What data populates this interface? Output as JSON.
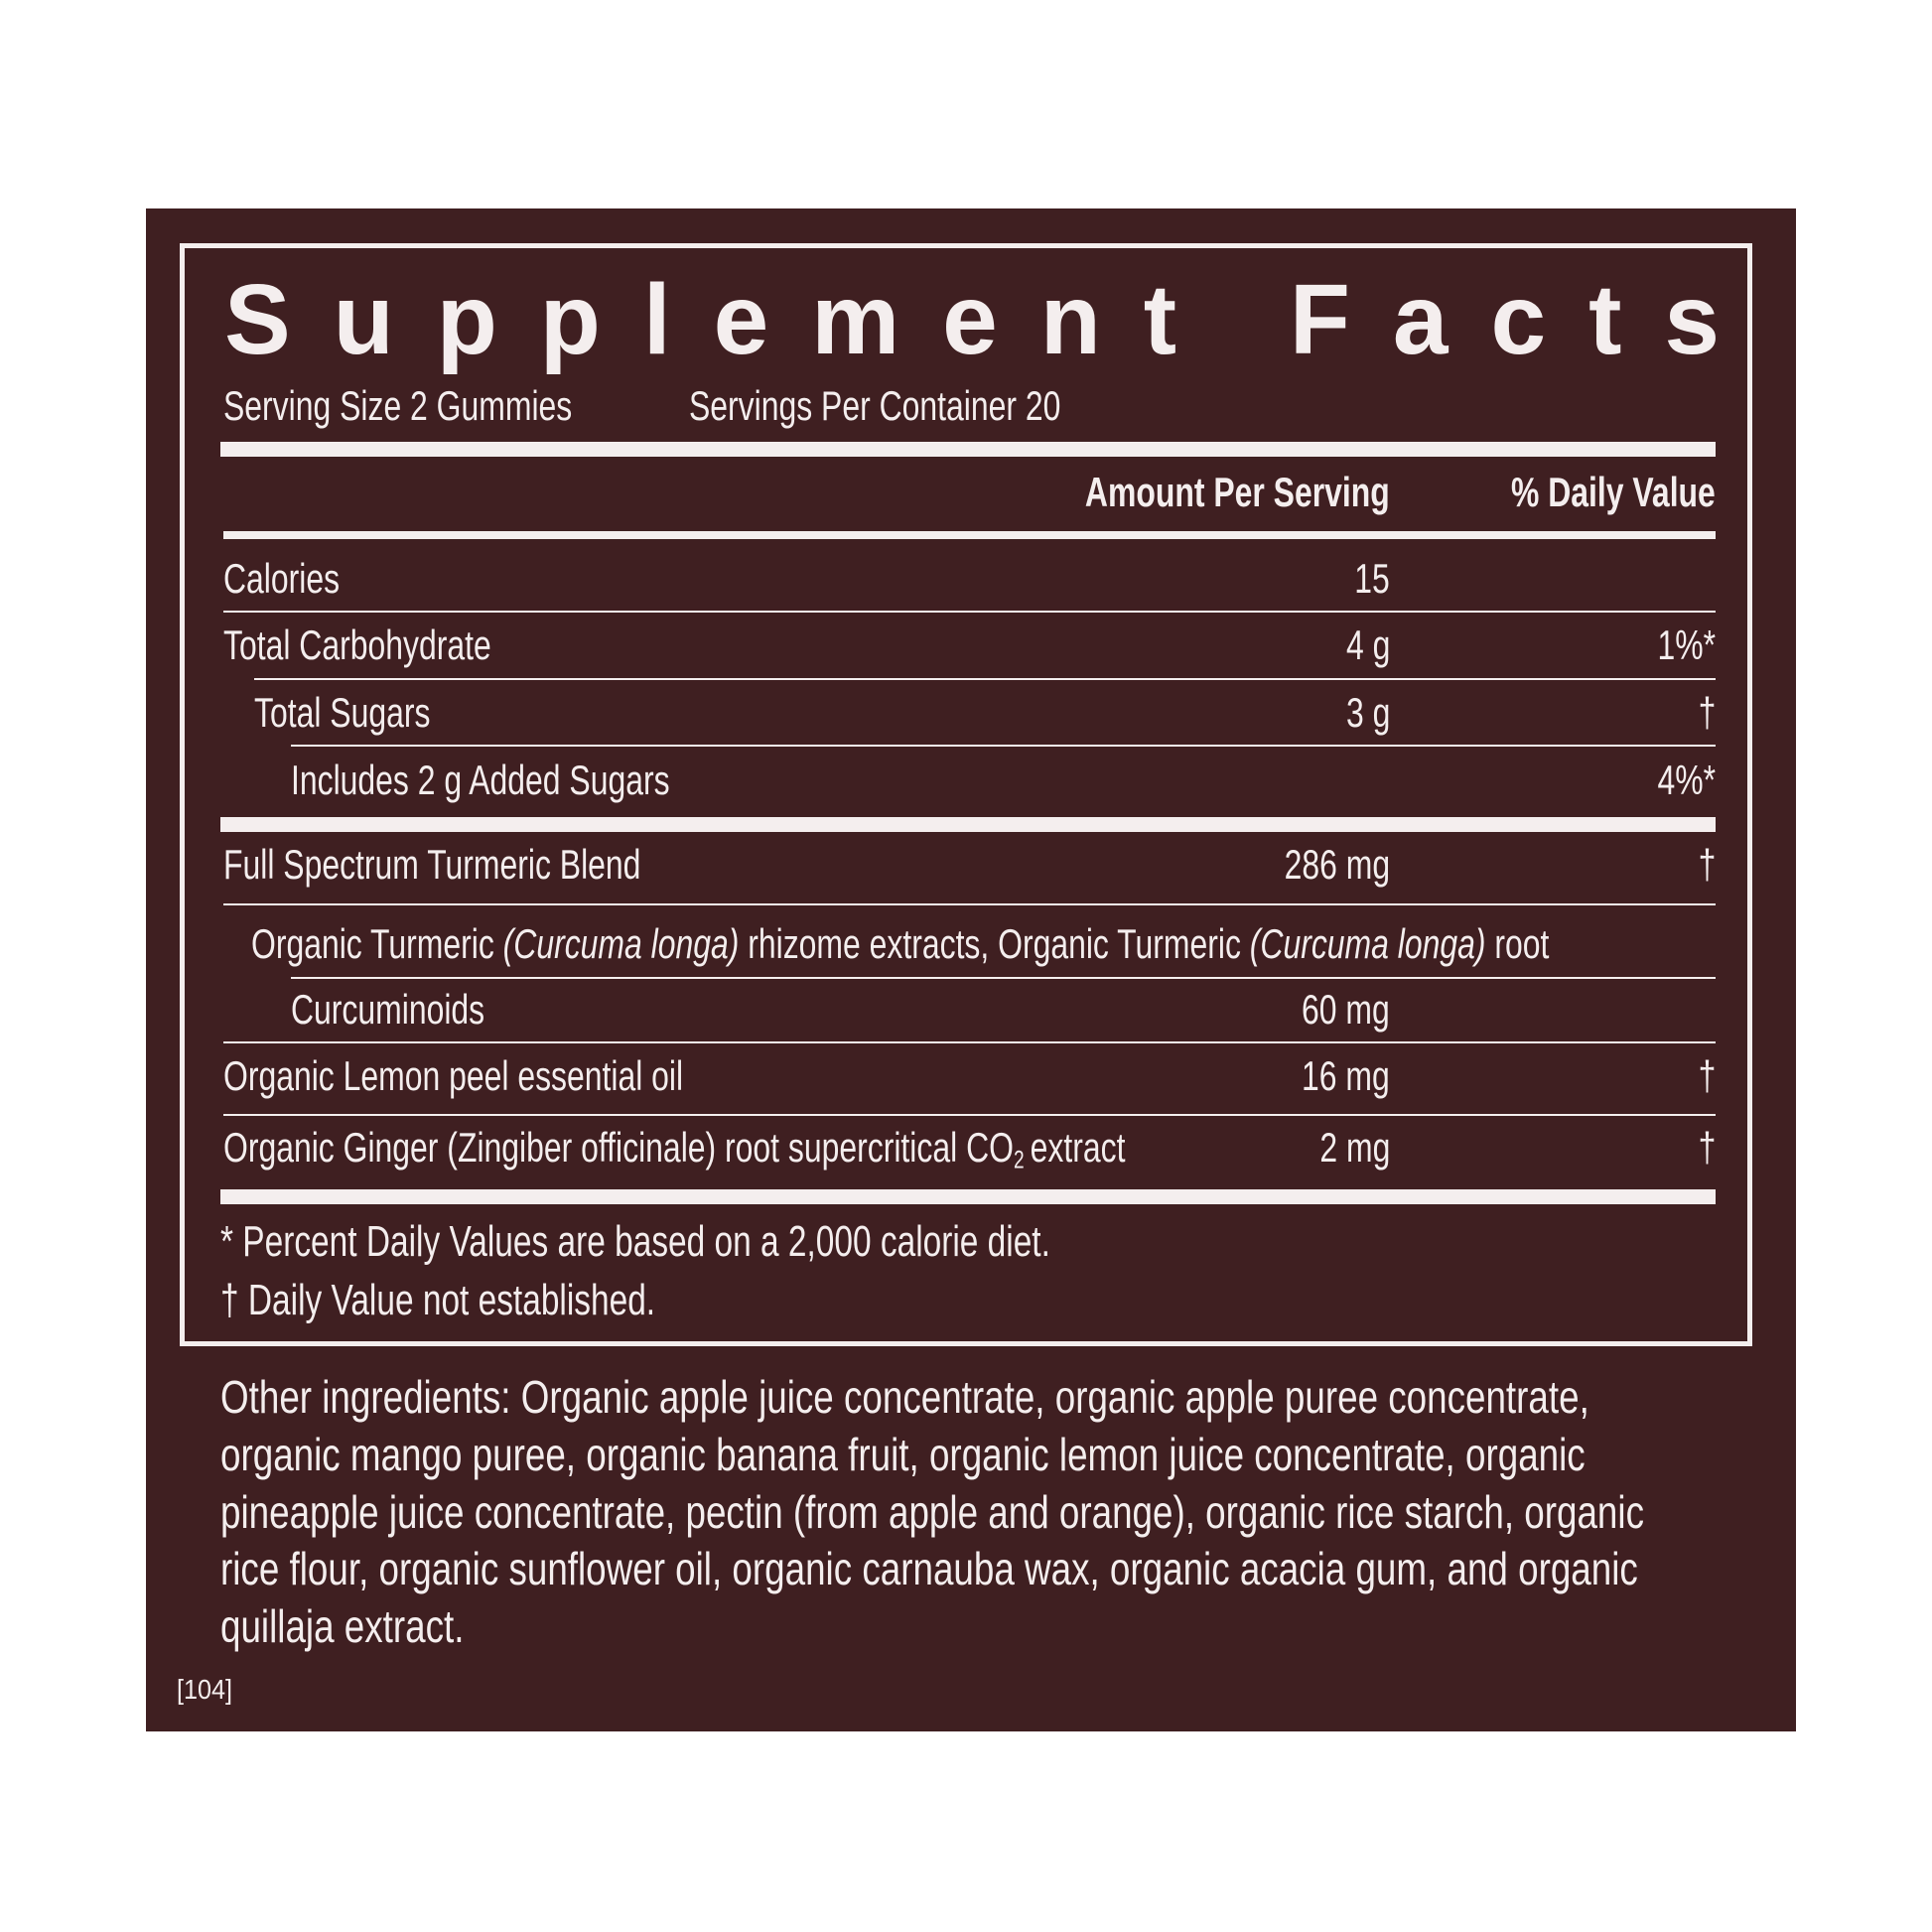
{
  "header": {
    "title": "Supplement Facts",
    "serving_size": "Serving Size 2 Gummies",
    "servings_per_container": "Servings Per Container 20"
  },
  "table": {
    "columns": [
      "Amount Per Serving",
      "% Daily Value"
    ],
    "rows": [
      {
        "name": "Calories",
        "amount": "15"
      },
      {
        "name": "Total Carbohydrate",
        "amount": "4 g",
        "dv": "1%*"
      },
      {
        "name": "Total Sugars",
        "amount": "3 g",
        "dv": "†"
      },
      {
        "name": "Includes 2 g Added Sugars",
        "dv": "4%*"
      },
      {
        "name": "Full Spectrum Turmeric Blend",
        "amount": "286 mg",
        "dv": "†"
      },
      {
        "name_parts": [
          "Organic Turmeric ",
          "(Curcuma longa)",
          " rhizome extracts, Organic Turmeric ",
          "(Curcuma longa)",
          " root"
        ]
      },
      {
        "name": "Curcuminoids",
        "amount": "60 mg"
      },
      {
        "name": "Organic Lemon peel essential oil",
        "amount": "16 mg",
        "dv": "†"
      },
      {
        "name_parts": [
          "Organic Ginger (Zingiber officinale) root supercritical CO",
          "2",
          "extract"
        ],
        "amount": "2 mg",
        "dv": "†"
      }
    ]
  },
  "footnotes": [
    "* Percent Daily Values are based on a 2,000 calorie diet.",
    "† Daily Value not established."
  ],
  "other_ingredients": [
    "Other ingredients: Organic apple juice concentrate, organic apple puree concentrate,",
    "organic mango puree, organic banana fruit, organic lemon juice concentrate, organic",
    "pineapple juice concentrate, pectin (from apple and orange), organic rice starch, organic",
    "rice flour, organic sunflower oil, organic carnauba wax, organic acacia gum, and organic",
    "quillaja extract."
  ],
  "code": "[104]"
}
